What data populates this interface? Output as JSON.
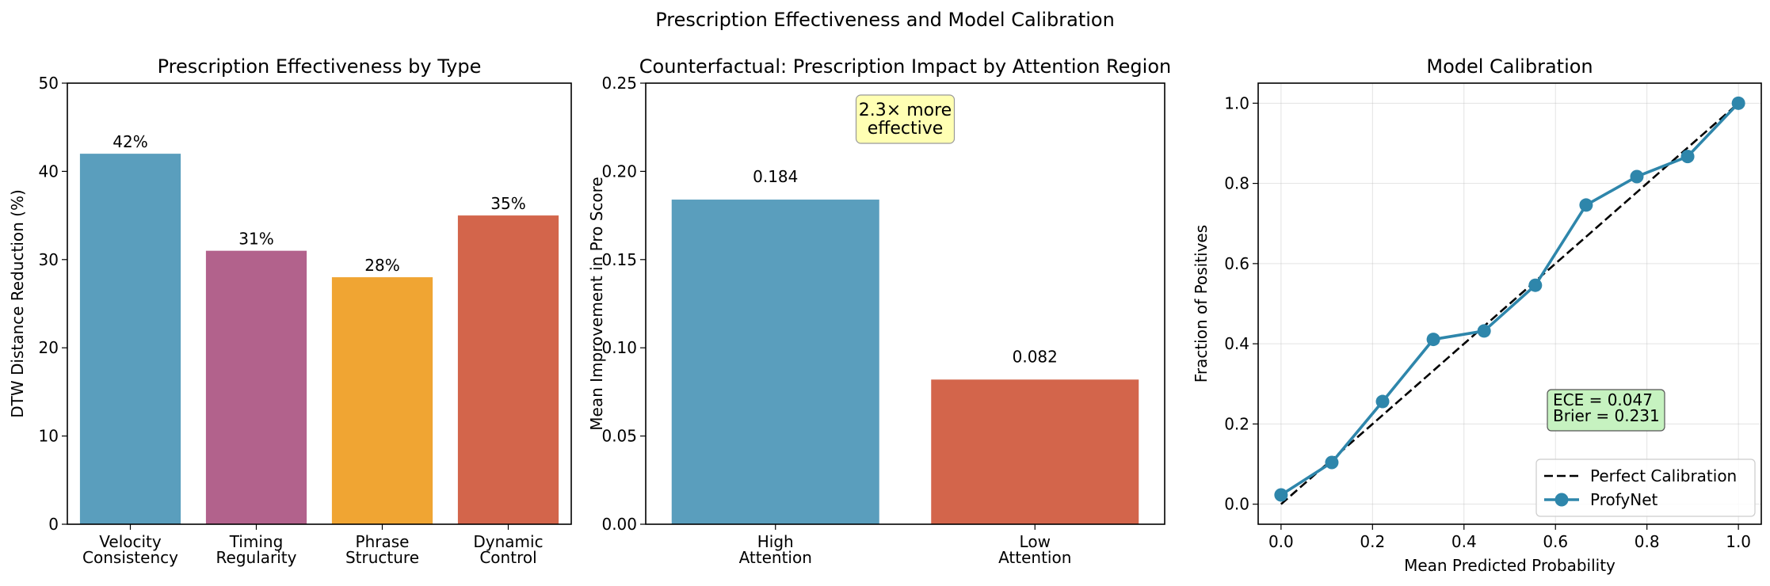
{
  "figure": {
    "suptitle": "Prescription Effectiveness and Model Calibration"
  },
  "chart_data": [
    {
      "type": "bar",
      "title": "Prescription Effectiveness by Type",
      "xlabel": "",
      "ylabel": "DTW Distance Reduction (%)",
      "categories": [
        "Velocity\nConsistency",
        "Timing\nRegularity",
        "Phrase\nStructure",
        "Dynamic\nControl"
      ],
      "values": [
        42,
        31,
        28,
        35
      ],
      "value_labels": [
        "42%",
        "31%",
        "28%",
        "35%"
      ],
      "colors": [
        "#5a9ebd",
        "#b2628c",
        "#f0a533",
        "#d3654b"
      ],
      "ylim": [
        0,
        50
      ],
      "yticks": [
        0,
        10,
        20,
        30,
        40,
        50
      ],
      "ytick_labels": [
        "0",
        "10",
        "20",
        "30",
        "40",
        "50"
      ],
      "grid": false
    },
    {
      "type": "bar",
      "title": "Counterfactual: Prescription Impact by Attention Region",
      "xlabel": "",
      "ylabel": "Mean Improvement in Pro Score",
      "categories": [
        "High\nAttention",
        "Low\nAttention"
      ],
      "values": [
        0.184,
        0.082
      ],
      "value_labels": [
        "0.184",
        "0.082"
      ],
      "colors": [
        "#5a9ebd",
        "#d3654b"
      ],
      "ylim": [
        0,
        0.25
      ],
      "yticks": [
        0,
        0.05,
        0.1,
        0.15,
        0.2,
        0.25
      ],
      "ytick_labels": [
        "0.00",
        "0.05",
        "0.10",
        "0.15",
        "0.20",
        "0.25"
      ],
      "annotation": "2.3× more\neffective",
      "annotation_color": "#ffffb3",
      "grid": false
    },
    {
      "type": "line",
      "title": "Model Calibration",
      "xlabel": "Mean Predicted Probability",
      "ylabel": "Fraction of Positives",
      "xlim": [
        -0.05,
        1.05
      ],
      "ylim": [
        -0.05,
        1.05
      ],
      "xticks": [
        0,
        0.2,
        0.4,
        0.6,
        0.8,
        1
      ],
      "xtick_labels": [
        "0.0",
        "0.2",
        "0.4",
        "0.6",
        "0.8",
        "1.0"
      ],
      "yticks": [
        0,
        0.2,
        0.4,
        0.6,
        0.8,
        1
      ],
      "ytick_labels": [
        "0.0",
        "0.2",
        "0.4",
        "0.6",
        "0.8",
        "1.0"
      ],
      "grid": true,
      "series": [
        {
          "name": "Perfect Calibration",
          "style": "dashed",
          "color": "#000000",
          "x": [
            0,
            1
          ],
          "y": [
            0,
            1
          ]
        },
        {
          "name": "ProfyNet",
          "style": "line-markers",
          "color": "#2e86ab",
          "x": [
            0.0,
            0.111,
            0.222,
            0.333,
            0.444,
            0.556,
            0.667,
            0.778,
            0.889,
            1.0
          ],
          "y": [
            0.023,
            0.104,
            0.256,
            0.411,
            0.432,
            0.546,
            0.746,
            0.817,
            0.867,
            1.0
          ]
        }
      ],
      "legend_position": "lower-right",
      "annotation": "ECE = 0.047\nBrier = 0.231",
      "annotation_color": "#c6f2c0"
    }
  ]
}
